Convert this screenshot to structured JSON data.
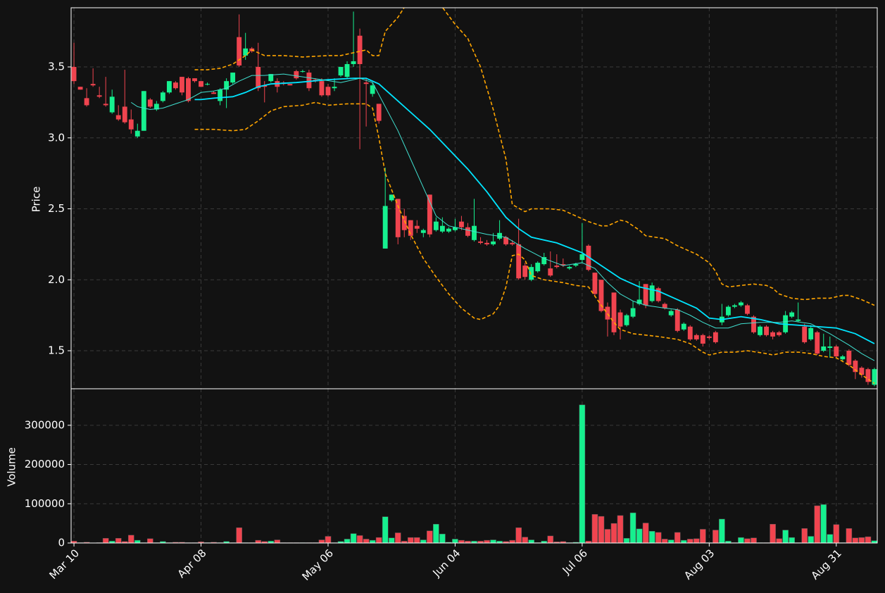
{
  "chart_data": [
    {
      "type": "candlestick",
      "ylabel": "Price",
      "xlim": [
        -0.45,
        126.45
      ],
      "ylim": [
        1.232,
        3.917
      ],
      "yticks": [
        1.5,
        {
          "value": 2,
          "label": "2.0"
        },
        2.5,
        {
          "value": 3,
          "label": "3.0"
        },
        3.5
      ],
      "grid": true,
      "up_color": "#16f08f",
      "down_color": "#f0444f",
      "open": [
        3.5,
        3.36,
        3.28,
        3.38,
        3.3,
        3.24,
        3.18,
        3.16,
        3.22,
        3.13,
        3.01,
        3.05,
        3.27,
        3.2,
        3.26,
        3.32,
        3.39,
        3.43,
        3.42,
        3.42,
        3.4,
        3.38,
        3.32,
        3.26,
        3.34,
        3.39,
        3.71,
        3.58,
        3.63,
        3.5,
        3.37,
        3.4,
        3.4,
        3.39,
        3.38,
        3.47,
        3.47,
        3.46,
        3.41,
        3.4,
        3.36,
        3.35,
        3.44,
        3.43,
        3.52,
        3.72,
        3.39,
        3.31,
        3.24,
        2.22,
        2.56,
        2.57,
        2.45,
        2.42,
        2.38,
        2.33,
        2.6,
        2.35,
        2.34,
        2.34,
        2.35,
        2.41,
        2.37,
        2.28,
        2.27,
        2.26,
        2.25,
        2.29,
        2.3,
        2.26,
        2.25,
        2.1,
        2.0,
        2.06,
        2.11,
        2.08,
        2.1,
        2.11,
        2.08,
        2.1,
        2.14,
        2.24,
        2.05,
        2.0,
        1.81,
        1.91,
        1.77,
        1.68,
        1.74,
        1.83,
        1.97,
        1.85,
        1.94,
        1.83,
        1.75,
        1.79,
        1.65,
        1.67,
        1.61,
        1.61,
        1.6,
        1.63,
        1.7,
        1.75,
        1.81,
        1.82,
        1.82,
        1.74,
        1.61,
        1.67,
        1.63,
        1.63,
        1.63,
        1.74,
        1.71,
        1.67,
        1.58,
        1.63,
        1.5,
        1.52,
        1.53,
        1.44,
        1.5,
        1.43,
        1.38,
        1.37,
        1.26
      ],
      "high": [
        3.67,
        3.36,
        3.35,
        3.49,
        3.36,
        3.43,
        3.34,
        3.23,
        3.48,
        3.2,
        3.1,
        3.33,
        3.28,
        3.26,
        3.33,
        3.4,
        3.4,
        3.43,
        3.43,
        3.42,
        3.4,
        3.39,
        3.33,
        3.35,
        3.42,
        3.46,
        3.87,
        3.74,
        3.64,
        3.67,
        3.4,
        3.45,
        3.42,
        3.4,
        3.38,
        3.48,
        3.48,
        3.48,
        3.42,
        3.42,
        3.38,
        3.42,
        3.5,
        3.54,
        3.89,
        3.77,
        3.42,
        3.39,
        3.24,
        2.79,
        2.6,
        2.57,
        2.5,
        2.42,
        2.42,
        2.36,
        2.6,
        2.44,
        2.44,
        2.37,
        2.43,
        2.45,
        2.4,
        2.57,
        2.3,
        2.28,
        2.33,
        2.42,
        2.31,
        2.28,
        2.43,
        2.12,
        2.11,
        2.13,
        2.19,
        2.2,
        2.18,
        2.15,
        2.1,
        2.12,
        2.4,
        2.25,
        2.05,
        2.0,
        1.84,
        1.91,
        1.79,
        1.76,
        1.85,
        1.99,
        1.97,
        1.98,
        1.95,
        1.84,
        1.79,
        1.8,
        1.7,
        1.68,
        1.62,
        1.62,
        1.61,
        1.64,
        1.83,
        1.82,
        1.83,
        1.85,
        1.83,
        1.75,
        1.68,
        1.68,
        1.64,
        1.64,
        1.78,
        1.78,
        1.84,
        1.69,
        1.68,
        1.64,
        1.62,
        1.6,
        1.54,
        1.47,
        1.51,
        1.44,
        1.39,
        1.38,
        1.38
      ],
      "low": [
        3.38,
        3.34,
        3.22,
        3.36,
        3.28,
        3.22,
        3.17,
        3.12,
        3.1,
        3.03,
        3.0,
        3.05,
        3.21,
        3.19,
        3.25,
        3.31,
        3.34,
        3.3,
        3.25,
        3.39,
        3.36,
        3.37,
        3.31,
        3.23,
        3.21,
        3.38,
        3.5,
        3.55,
        3.6,
        3.33,
        3.25,
        3.39,
        3.32,
        3.37,
        3.37,
        3.41,
        3.46,
        3.33,
        3.39,
        3.29,
        3.29,
        3.33,
        3.43,
        3.42,
        3.5,
        2.92,
        3.08,
        3.29,
        3.1,
        2.22,
        2.55,
        2.25,
        2.3,
        2.28,
        2.33,
        2.3,
        2.3,
        2.34,
        2.33,
        2.33,
        2.34,
        2.35,
        2.3,
        2.27,
        2.25,
        2.24,
        2.24,
        2.28,
        2.24,
        2.24,
        2.0,
        2.0,
        1.99,
        2.05,
        2.1,
        2.02,
        2.08,
        2.09,
        2.07,
        2.09,
        2.12,
        2.06,
        1.88,
        1.77,
        1.6,
        1.61,
        1.58,
        1.67,
        1.73,
        1.82,
        1.8,
        1.84,
        1.84,
        1.79,
        1.74,
        1.63,
        1.64,
        1.57,
        1.57,
        1.53,
        1.58,
        1.55,
        1.68,
        1.74,
        1.8,
        1.81,
        1.75,
        1.62,
        1.6,
        1.6,
        1.58,
        1.6,
        1.62,
        1.73,
        1.7,
        1.55,
        1.57,
        1.47,
        1.49,
        1.45,
        1.45,
        1.43,
        1.39,
        1.3,
        1.31,
        1.26,
        1.25
      ],
      "close": [
        3.4,
        3.34,
        3.23,
        3.37,
        3.29,
        3.23,
        3.29,
        3.13,
        3.11,
        3.06,
        3.05,
        3.33,
        3.22,
        3.24,
        3.32,
        3.4,
        3.35,
        3.32,
        3.26,
        3.4,
        3.36,
        3.38,
        3.31,
        3.34,
        3.4,
        3.46,
        3.51,
        3.63,
        3.61,
        3.35,
        3.36,
        3.45,
        3.36,
        3.38,
        3.37,
        3.42,
        3.47,
        3.35,
        3.4,
        3.3,
        3.3,
        3.36,
        3.5,
        3.52,
        3.54,
        3.52,
        3.38,
        3.37,
        3.12,
        2.52,
        2.6,
        2.3,
        2.35,
        2.31,
        2.36,
        2.35,
        2.32,
        2.41,
        2.38,
        2.36,
        2.37,
        2.37,
        2.31,
        2.38,
        2.26,
        2.25,
        2.27,
        2.33,
        2.25,
        2.25,
        2.01,
        2.02,
        2.09,
        2.12,
        2.16,
        2.03,
        2.09,
        2.1,
        2.09,
        2.11,
        2.18,
        2.07,
        1.9,
        1.78,
        1.72,
        1.63,
        1.67,
        1.75,
        1.8,
        1.86,
        1.82,
        1.96,
        1.85,
        1.8,
        1.78,
        1.64,
        1.69,
        1.58,
        1.58,
        1.55,
        1.59,
        1.56,
        1.74,
        1.81,
        1.82,
        1.84,
        1.76,
        1.63,
        1.67,
        1.61,
        1.6,
        1.61,
        1.75,
        1.77,
        1.72,
        1.56,
        1.66,
        1.48,
        1.53,
        1.53,
        1.46,
        1.46,
        1.4,
        1.35,
        1.33,
        1.28,
        1.37
      ],
      "series": [
        {
          "color": "#ffa500",
          "dash": true,
          "linewidth": 1.6,
          "x": [
            19,
            21,
            23,
            25,
            27,
            28,
            30,
            33,
            36,
            40,
            42,
            44,
            46,
            47,
            48,
            49,
            51,
            52,
            54,
            56,
            58,
            60,
            62,
            64,
            66,
            68,
            69,
            71,
            72,
            75,
            77,
            79,
            81,
            83,
            84,
            86,
            87,
            89,
            90,
            93,
            95,
            96,
            98,
            100,
            101,
            102,
            103,
            105,
            107,
            109,
            110,
            111,
            113,
            115,
            117,
            119,
            121,
            122,
            124,
            126
          ],
          "values": [
            3.48,
            3.48,
            3.49,
            3.52,
            3.58,
            3.62,
            3.58,
            3.58,
            3.57,
            3.58,
            3.58,
            3.6,
            3.62,
            3.58,
            3.58,
            3.75,
            3.85,
            3.92,
            4.02,
            3.98,
            3.92,
            3.8,
            3.7,
            3.5,
            3.2,
            2.85,
            2.53,
            2.48,
            2.5,
            2.5,
            2.49,
            2.45,
            2.41,
            2.38,
            2.38,
            2.42,
            2.41,
            2.35,
            2.31,
            2.29,
            2.24,
            2.22,
            2.18,
            2.12,
            2.06,
            1.97,
            1.95,
            1.96,
            1.97,
            1.96,
            1.94,
            1.9,
            1.87,
            1.86,
            1.87,
            1.87,
            1.89,
            1.89,
            1.86,
            1.82
          ]
        },
        {
          "color": "#ffa500",
          "dash": true,
          "linewidth": 1.6,
          "x": [
            19,
            22,
            25,
            27,
            29,
            31,
            33,
            36,
            38,
            40,
            43,
            46,
            47,
            48,
            49,
            51,
            53,
            55,
            57,
            59,
            61,
            63,
            64,
            66,
            67,
            68,
            69,
            70,
            71,
            72,
            74,
            77,
            79,
            81,
            83,
            85,
            86,
            88,
            90,
            92,
            95,
            97,
            99,
            100,
            102,
            104,
            106,
            109,
            110,
            112,
            114,
            116,
            118,
            120,
            122,
            124,
            126
          ],
          "values": [
            3.06,
            3.06,
            3.05,
            3.06,
            3.12,
            3.19,
            3.22,
            3.23,
            3.25,
            3.23,
            3.24,
            3.24,
            3.21,
            3.0,
            2.75,
            2.52,
            2.32,
            2.15,
            2.02,
            1.9,
            1.8,
            1.73,
            1.72,
            1.76,
            1.82,
            1.95,
            2.17,
            2.18,
            2.14,
            2.03,
            2.0,
            1.98,
            1.96,
            1.95,
            1.82,
            1.7,
            1.65,
            1.62,
            1.61,
            1.6,
            1.58,
            1.55,
            1.49,
            1.47,
            1.49,
            1.49,
            1.5,
            1.48,
            1.47,
            1.49,
            1.49,
            1.48,
            1.46,
            1.45,
            1.4,
            1.33,
            1.27
          ]
        },
        {
          "color": "#00e5ff",
          "dash": false,
          "linewidth": 1.8,
          "x": [
            19,
            20,
            22,
            25,
            27,
            29,
            31,
            35,
            40,
            44,
            46,
            48,
            50,
            53,
            56,
            59,
            62,
            65,
            68,
            70,
            72,
            76,
            80,
            83,
            86,
            89,
            92,
            95,
            98,
            100,
            102,
            105,
            108,
            111,
            114,
            117,
            120,
            123,
            126
          ],
          "values": [
            3.27,
            3.27,
            3.28,
            3.29,
            3.32,
            3.36,
            3.38,
            3.39,
            3.41,
            3.42,
            3.42,
            3.38,
            3.3,
            3.18,
            3.06,
            2.92,
            2.78,
            2.62,
            2.44,
            2.36,
            2.3,
            2.26,
            2.19,
            2.1,
            2.01,
            1.95,
            1.92,
            1.86,
            1.8,
            1.73,
            1.72,
            1.74,
            1.72,
            1.69,
            1.68,
            1.67,
            1.66,
            1.62,
            1.55
          ]
        },
        {
          "color": "#40e0d0",
          "dash": false,
          "linewidth": 1,
          "x": [
            9,
            10,
            12,
            14,
            16,
            18,
            20,
            22,
            24,
            26,
            28,
            30,
            33,
            36,
            39,
            42,
            45,
            47,
            49,
            51,
            53,
            55,
            57,
            59,
            62,
            65,
            68,
            71,
            74,
            77,
            80,
            82,
            84,
            86,
            88,
            90,
            93,
            95,
            97,
            99,
            101,
            103,
            105,
            108,
            111,
            113,
            116,
            119,
            122,
            124,
            126
          ],
          "values": [
            3.25,
            3.22,
            3.2,
            3.21,
            3.24,
            3.27,
            3.32,
            3.33,
            3.35,
            3.4,
            3.44,
            3.44,
            3.45,
            3.43,
            3.41,
            3.39,
            3.42,
            3.39,
            3.22,
            3.05,
            2.85,
            2.65,
            2.45,
            2.38,
            2.35,
            2.32,
            2.3,
            2.22,
            2.15,
            2.1,
            2.12,
            2.08,
            1.98,
            1.9,
            1.85,
            1.82,
            1.8,
            1.79,
            1.75,
            1.7,
            1.66,
            1.66,
            1.69,
            1.7,
            1.7,
            1.71,
            1.69,
            1.62,
            1.54,
            1.48,
            1.43
          ]
        }
      ]
    },
    {
      "type": "bar",
      "ylabel": "Volume",
      "xlim": [
        -0.45,
        126.45
      ],
      "ylim": [
        0,
        393000
      ],
      "yticks": [
        0,
        100000,
        200000,
        300000
      ],
      "grid": true,
      "up_color": "#16f08f",
      "down_color": "#f0444f",
      "xticks": [
        {
          "value": 0,
          "label": "Mar 10"
        },
        {
          "value": 20,
          "label": "Apr 08"
        },
        {
          "value": 40,
          "label": "May 06"
        },
        {
          "value": 60,
          "label": "Jun 04"
        },
        {
          "value": 80,
          "label": "Jul 06"
        },
        {
          "value": 100,
          "label": "Aug 03"
        },
        {
          "value": 120,
          "label": "Aug 31"
        }
      ],
      "values": [
        5000,
        1000,
        2000,
        500,
        1000,
        12000,
        5000,
        12000,
        4000,
        20000,
        7000,
        1000,
        11000,
        1000,
        4000,
        1000,
        2000,
        2000,
        1000,
        1000,
        3000,
        1000,
        2000,
        1000,
        4000,
        1000,
        39000,
        1000,
        1000,
        7000,
        4000,
        5000,
        8000,
        1000,
        1000,
        1000,
        1000,
        1000,
        1000,
        8000,
        17000,
        1000,
        4000,
        10000,
        24000,
        19000,
        10000,
        7000,
        14000,
        67000,
        13000,
        26000,
        5000,
        14000,
        14000,
        8000,
        31000,
        48000,
        23000,
        2000,
        10000,
        7000,
        5000,
        5000,
        5000,
        7000,
        8000,
        5000,
        4000,
        7000,
        39000,
        15000,
        8000,
        1000,
        5000,
        18000,
        3000,
        4000,
        1000,
        2000,
        352000,
        5000,
        73000,
        68000,
        35000,
        50000,
        70000,
        12000,
        77000,
        36000,
        51000,
        30000,
        27000,
        10000,
        8000,
        27000,
        7000,
        10000,
        11000,
        35000,
        1000,
        33000,
        61000,
        5000,
        1000,
        14000,
        11000,
        13000,
        1000,
        1000,
        48000,
        11000,
        33000,
        14000,
        1000,
        37000,
        17000,
        95000,
        98000,
        22000,
        47000,
        1000,
        37000,
        13000,
        14000,
        16000,
        6000
      ]
    }
  ]
}
